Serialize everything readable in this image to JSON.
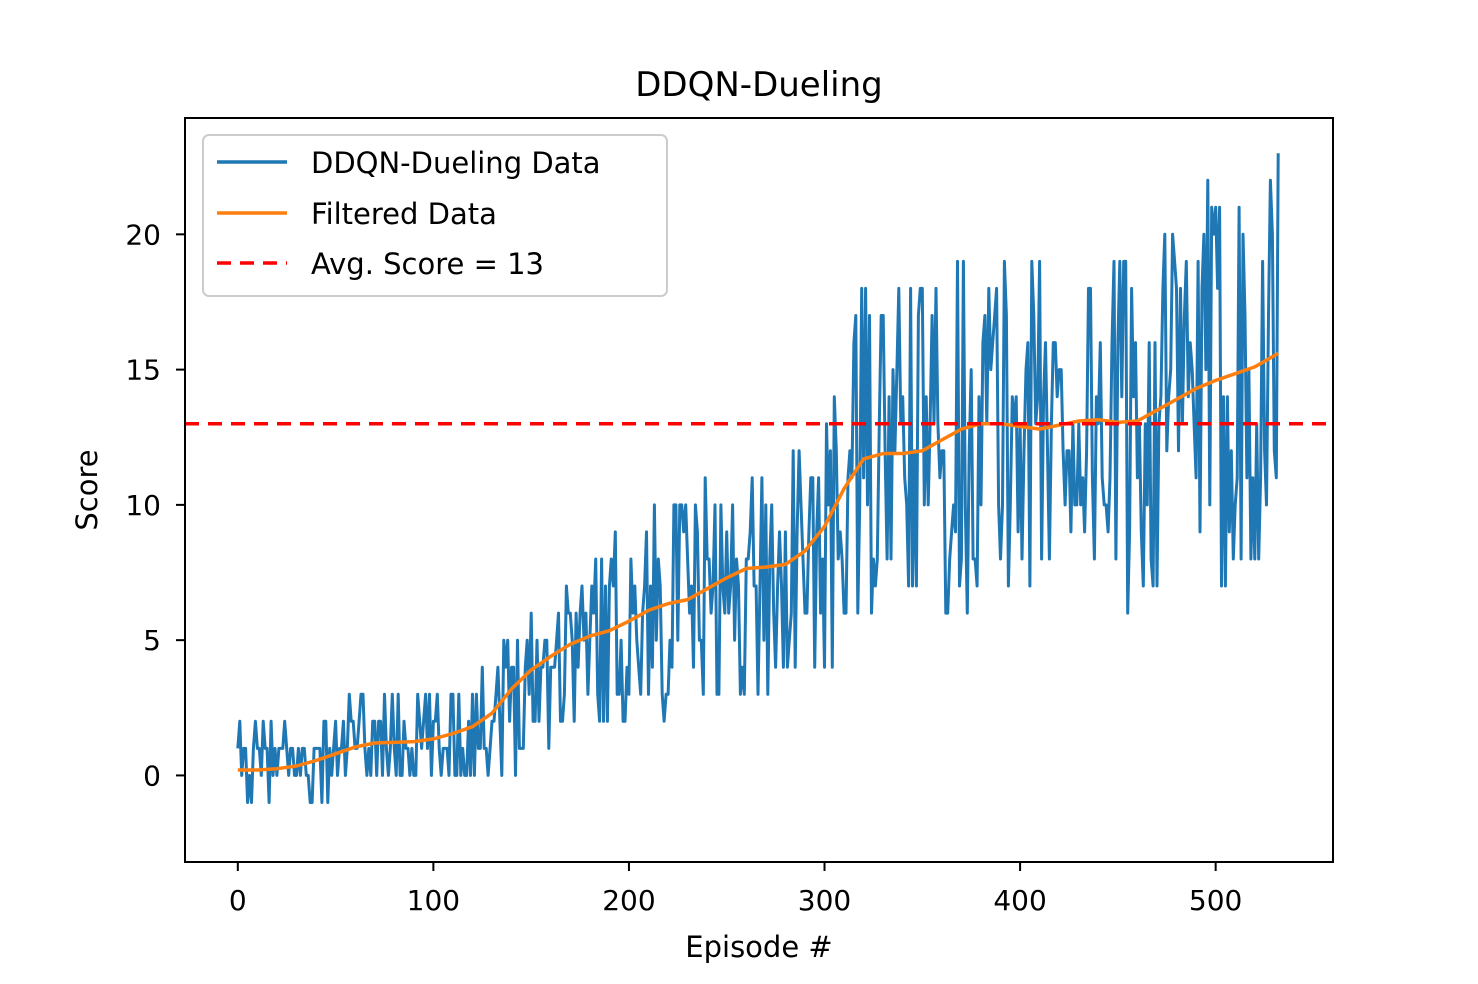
{
  "chart_data": {
    "type": "line",
    "title": "DDQN-Dueling",
    "xlabel": "Episode #",
    "ylabel": "Score",
    "xlim": [
      -27,
      560
    ],
    "ylim": [
      -3.2,
      24.3
    ],
    "xticks": [
      0,
      100,
      200,
      300,
      400,
      500
    ],
    "yticks": [
      0,
      5,
      10,
      15,
      20
    ],
    "grid": false,
    "legend_position": "top-left",
    "colors": {
      "raw": "#1f77b4",
      "filtered": "#ff7f0e",
      "threshold": "#ff0000"
    },
    "legend": [
      "DDQN-Dueling Data",
      "Filtered Data",
      "Avg. Score = 13"
    ],
    "threshold": 13,
    "raw_anchor_episodes": [
      0,
      20,
      40,
      60,
      80,
      100,
      120,
      140,
      160,
      180,
      200,
      220,
      240,
      260,
      280,
      300,
      320,
      340,
      360,
      380,
      400,
      420,
      440,
      460,
      480,
      500,
      520,
      532
    ],
    "raw_anchor_scores": [
      0.2,
      0.4,
      0.5,
      1.2,
      1.5,
      1.3,
      1.8,
      3.0,
      4.5,
      5.0,
      5.5,
      6.5,
      6.5,
      7.0,
      7.5,
      8.0,
      12.0,
      12.0,
      12.5,
      13.0,
      13.0,
      13.0,
      13.0,
      13.0,
      14.0,
      14.5,
      15.0,
      15.8
    ],
    "filtered": {
      "x": [
        0,
        10,
        20,
        30,
        40,
        50,
        60,
        70,
        80,
        90,
        100,
        110,
        120,
        130,
        140,
        150,
        160,
        170,
        180,
        190,
        200,
        210,
        220,
        230,
        240,
        250,
        260,
        270,
        280,
        290,
        300,
        310,
        320,
        330,
        340,
        350,
        360,
        370,
        380,
        390,
        400,
        410,
        420,
        430,
        440,
        450,
        460,
        470,
        480,
        490,
        500,
        510,
        520,
        532
      ],
      "y": [
        0.2,
        0.2,
        0.25,
        0.35,
        0.55,
        0.8,
        1.05,
        1.2,
        1.22,
        1.25,
        1.35,
        1.55,
        1.8,
        2.3,
        3.2,
        3.9,
        4.4,
        4.85,
        5.15,
        5.35,
        5.7,
        6.1,
        6.35,
        6.5,
        6.9,
        7.3,
        7.65,
        7.7,
        7.8,
        8.3,
        9.2,
        10.6,
        11.7,
        11.9,
        11.9,
        12.0,
        12.4,
        12.8,
        13.0,
        13.0,
        12.9,
        12.8,
        12.95,
        13.1,
        13.15,
        13.05,
        13.1,
        13.5,
        13.9,
        14.3,
        14.6,
        14.85,
        15.1,
        15.6
      ]
    }
  }
}
